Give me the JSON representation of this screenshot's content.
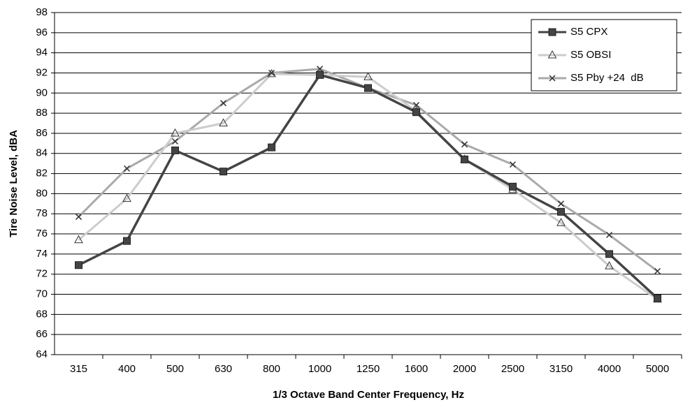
{
  "chart_data": {
    "type": "line",
    "x_label": "1/3 Octave Band Center Frequency, Hz",
    "y_label": "Tire Noise Level, dBA",
    "categories": [
      "315",
      "400",
      "500",
      "630",
      "800",
      "1000",
      "1250",
      "1600",
      "2000",
      "2500",
      "3150",
      "4000",
      "5000"
    ],
    "series": [
      {
        "name": "S5 CPX",
        "color": "#444444",
        "marker": "square",
        "values": [
          72.9,
          75.3,
          84.3,
          82.2,
          84.6,
          91.8,
          90.5,
          88.1,
          83.4,
          80.7,
          78.2,
          74.0,
          69.6
        ]
      },
      {
        "name": "S5 OBSI",
        "color": "#cccccc",
        "marker": "triangle",
        "values": [
          75.4,
          79.5,
          86.0,
          87.0,
          91.9,
          91.8,
          91.6,
          88.2,
          83.4,
          80.4,
          77.1,
          72.8,
          69.5
        ]
      },
      {
        "name": "S5 Pby +24  dB",
        "color": "#aaaaaa",
        "marker": "x",
        "values": [
          77.7,
          82.5,
          85.2,
          89.0,
          92.0,
          92.4,
          90.5,
          88.8,
          84.9,
          82.9,
          79.0,
          75.9,
          72.3
        ]
      }
    ],
    "ylim": [
      64,
      98
    ],
    "yticks": [
      64,
      66,
      68,
      70,
      72,
      74,
      76,
      78,
      80,
      82,
      84,
      86,
      88,
      90,
      92,
      94,
      96,
      98
    ],
    "grid": true,
    "legend": "upper right"
  }
}
